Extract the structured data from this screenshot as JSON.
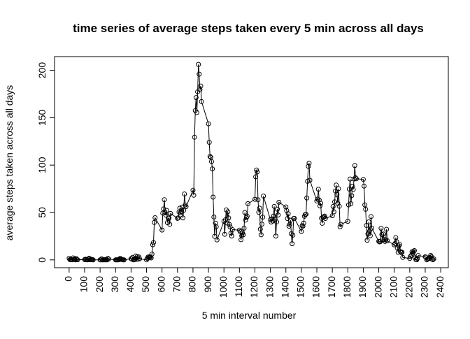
{
  "chart_data": {
    "type": "line",
    "title": "time series of average steps taken every 5 min across all days",
    "xlabel": "5 min interval number",
    "ylabel": "average steps taken across all days",
    "markers": true,
    "color": "#000000",
    "x": [
      0,
      5,
      10,
      15,
      20,
      25,
      30,
      35,
      40,
      45,
      50,
      55,
      100,
      105,
      110,
      115,
      120,
      125,
      130,
      135,
      140,
      145,
      150,
      155,
      200,
      205,
      210,
      215,
      220,
      225,
      230,
      235,
      240,
      245,
      250,
      255,
      300,
      305,
      310,
      315,
      320,
      325,
      330,
      335,
      340,
      345,
      350,
      355,
      400,
      405,
      410,
      415,
      420,
      425,
      430,
      435,
      440,
      445,
      450,
      455,
      500,
      505,
      510,
      515,
      520,
      525,
      530,
      535,
      540,
      545,
      550,
      555,
      600,
      605,
      610,
      615,
      620,
      625,
      630,
      635,
      640,
      645,
      650,
      655,
      700,
      705,
      710,
      715,
      720,
      725,
      730,
      735,
      740,
      745,
      750,
      755,
      800,
      805,
      810,
      815,
      820,
      825,
      830,
      835,
      840,
      845,
      850,
      855,
      900,
      905,
      910,
      915,
      920,
      925,
      930,
      935,
      940,
      945,
      950,
      955,
      1000,
      1005,
      1010,
      1015,
      1020,
      1025,
      1030,
      1035,
      1040,
      1045,
      1050,
      1055,
      1100,
      1105,
      1110,
      1115,
      1120,
      1125,
      1130,
      1135,
      1140,
      1145,
      1150,
      1155,
      1200,
      1205,
      1210,
      1215,
      1220,
      1225,
      1230,
      1235,
      1240,
      1245,
      1250,
      1255,
      1300,
      1305,
      1310,
      1315,
      1320,
      1325,
      1330,
      1335,
      1340,
      1345,
      1350,
      1355,
      1400,
      1405,
      1410,
      1415,
      1420,
      1425,
      1430,
      1435,
      1440,
      1445,
      1450,
      1455,
      1500,
      1505,
      1510,
      1515,
      1520,
      1525,
      1530,
      1535,
      1540,
      1545,
      1550,
      1555,
      1600,
      1605,
      1610,
      1615,
      1620,
      1625,
      1630,
      1635,
      1640,
      1645,
      1650,
      1655,
      1700,
      1705,
      1710,
      1715,
      1720,
      1725,
      1730,
      1735,
      1740,
      1745,
      1750,
      1755,
      1800,
      1805,
      1810,
      1815,
      1820,
      1825,
      1830,
      1835,
      1840,
      1845,
      1850,
      1855,
      1900,
      1905,
      1910,
      1915,
      1920,
      1925,
      1930,
      1935,
      1940,
      1945,
      1950,
      1955,
      2000,
      2005,
      2010,
      2015,
      2020,
      2025,
      2030,
      2035,
      2040,
      2045,
      2050,
      2055,
      2100,
      2105,
      2110,
      2115,
      2120,
      2125,
      2130,
      2135,
      2140,
      2145,
      2150,
      2155,
      2200,
      2205,
      2210,
      2215,
      2220,
      2225,
      2230,
      2235,
      2240,
      2245,
      2250,
      2255,
      2300,
      2305,
      2310,
      2315,
      2320,
      2325,
      2330,
      2335,
      2340,
      2345,
      2350,
      2355
    ],
    "values": [
      1.7,
      0.3,
      0.1,
      0.2,
      0.1,
      2.1,
      0.5,
      0.9,
      0,
      1.5,
      0.3,
      0.1,
      0.3,
      0.7,
      0.2,
      0.3,
      0,
      1.1,
      1.8,
      0.2,
      0.2,
      0.4,
      0.3,
      0,
      0,
      0,
      1.1,
      0,
      0,
      0.1,
      0,
      0.2,
      0,
      0,
      1.5,
      0.9,
      0,
      0,
      0,
      0,
      0.2,
      0.6,
      1.6,
      0.6,
      0.5,
      0.1,
      0,
      0,
      1.2,
      0.9,
      2.6,
      0,
      0.3,
      0.4,
      4.1,
      0.7,
      3.5,
      0.8,
      3.1,
      1.1,
      0,
      1.6,
      3.0,
      2.2,
      3.3,
      3.0,
      2.1,
      6.1,
      16.0,
      18.3,
      39.5,
      44.5,
      31.5,
      49.3,
      53.8,
      63.5,
      50.0,
      47.1,
      52.2,
      39.3,
      44.0,
      44.2,
      37.4,
      49.0,
      43.8,
      44.4,
      50.5,
      54.5,
      49.9,
      51.0,
      55.7,
      44.3,
      52.3,
      69.5,
      57.8,
      56.2,
      73.4,
      68.2,
      129.4,
      157.5,
      171.2,
      155.4,
      177.3,
      206.2,
      195.9,
      179.6,
      183.4,
      167.0,
      143.5,
      124.0,
      109.1,
      108.1,
      103.7,
      96.0,
      66.2,
      45.2,
      24.8,
      38.8,
      35.0,
      21.1,
      40.6,
      27.0,
      42.4,
      52.7,
      38.9,
      50.8,
      44.3,
      37.4,
      34.7,
      28.3,
      25.1,
      31.9,
      31.4,
      29.7,
      21.3,
      25.5,
      28.4,
      26.5,
      33.4,
      50.0,
      42.0,
      44.6,
      46.0,
      59.3,
      63.9,
      87.7,
      94.8,
      92.8,
      63.4,
      50.2,
      54.5,
      32.4,
      26.5,
      37.7,
      45.1,
      67.3,
      42.3,
      39.9,
      43.3,
      41.0,
      46.2,
      56.4,
      42.8,
      25.1,
      40.0,
      53.5,
      47.3,
      60.8,
      55.8,
      52.0,
      43.6,
      48.7,
      35.5,
      37.5,
      41.8,
      27.5,
      17.1,
      26.1,
      43.6,
      43.8,
      30.0,
      36.1,
      35.5,
      38.8,
      46.0,
      47.8,
      48.1,
      65.3,
      82.9,
      98.7,
      102.1,
      84.0,
      62.1,
      64.1,
      74.5,
      63.2,
      56.9,
      59.8,
      43.9,
      38.6,
      44.7,
      45.5,
      46.2,
      43.7,
      46.6,
      56.3,
      50.7,
      61.2,
      72.7,
      78.9,
      68.9,
      59.7,
      75.1,
      56.5,
      34.8,
      37.5,
      40.7,
      58.0,
      74.7,
      85.3,
      59.3,
      67.8,
      77.7,
      74.2,
      85.3,
      99.5,
      86.6,
      85.6,
      84.9,
      77.8,
      58.0,
      53.4,
      36.3,
      20.7,
      27.4,
      40.0,
      30.2,
      25.5,
      45.7,
      33.5,
      19.6,
      19.0,
      19.3,
      33.3,
      26.8,
      21.2,
      27.3,
      21.3,
      19.5,
      21.3,
      32.3,
      20.2,
      15.9,
      17.2,
      23.5,
      19.2,
      12.5,
      8.0,
      14.7,
      16.3,
      8.7,
      7.8,
      8.1,
      2.6,
      1.5,
      3.7,
      4.8,
      8.5,
      7.1,
      8.7,
      9.8,
      2.2,
      0.3,
      0.1,
      1.6,
      4.6,
      3.3,
      2.8,
      0,
      0.8,
      1.0,
      1.6,
      2.6,
      4.7,
      3.3,
      0.6,
      0.2,
      1.1
    ],
    "xlim": [
      -94.2,
      2449.2
    ],
    "ylim": [
      -8.25,
      214.42
    ],
    "xticks": [
      0,
      100,
      200,
      300,
      400,
      500,
      600,
      700,
      800,
      900,
      1000,
      1100,
      1200,
      1300,
      1400,
      1500,
      1600,
      1700,
      1800,
      1900,
      2000,
      2100,
      2200,
      2300,
      2400
    ],
    "yticks": [
      0,
      50,
      100,
      150,
      200
    ]
  }
}
